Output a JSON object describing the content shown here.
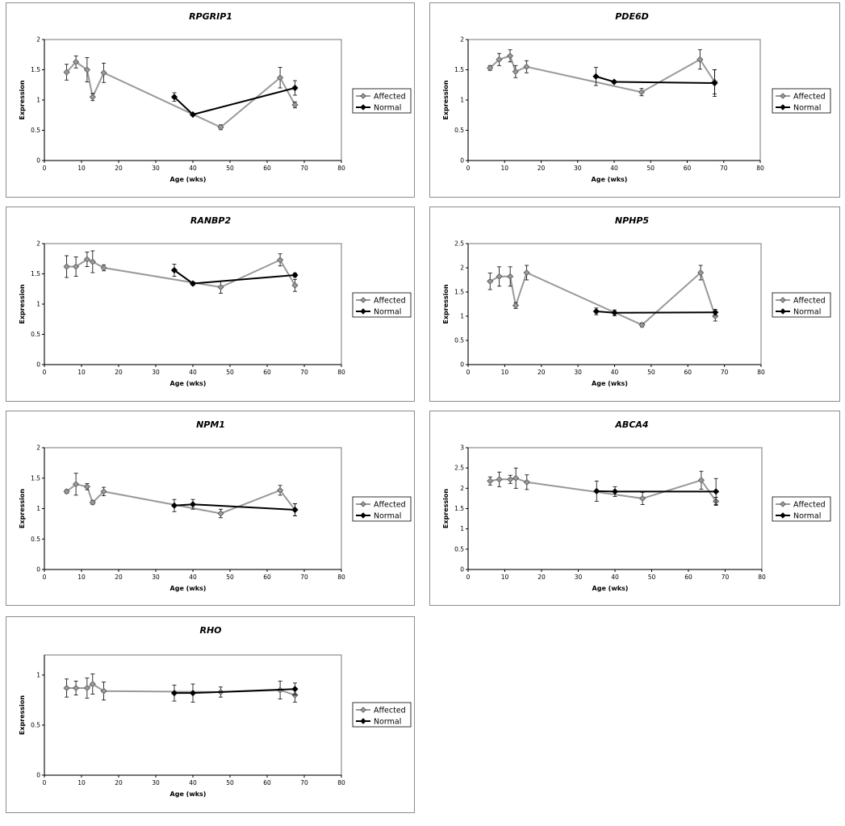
{
  "chart_data": [
    {
      "type": "line",
      "title": "RPGRIP1",
      "xlabel": "Age (wks)",
      "ylabel": "Expression",
      "xlim": [
        0,
        80
      ],
      "ylim": [
        0,
        2
      ],
      "xticks": [
        "0",
        "10",
        "20",
        "30",
        "40",
        "50",
        "60",
        "70",
        "80"
      ],
      "yticks": [
        "0",
        "0.5",
        "1",
        "1.5",
        "2"
      ],
      "legend_position": "right",
      "series": [
        {
          "name": "Affected",
          "x": [
            6,
            8.5,
            11.5,
            13,
            16,
            47.5,
            63.5,
            67.5
          ],
          "y": [
            1.46,
            1.63,
            1.5,
            1.05,
            1.45,
            0.55,
            1.37,
            0.92
          ],
          "err": [
            0.13,
            0.1,
            0.2,
            0.06,
            0.16,
            0.04,
            0.17,
            0.05
          ]
        },
        {
          "name": "Normal",
          "x": [
            35,
            40,
            67.5
          ],
          "y": [
            1.05,
            0.76,
            1.2
          ],
          "err": [
            0.07,
            0.02,
            0.12
          ]
        }
      ]
    },
    {
      "type": "line",
      "title": "PDE6D",
      "xlabel": "Age (wks)",
      "ylabel": "Expression",
      "xlim": [
        0,
        80
      ],
      "ylim": [
        0,
        2
      ],
      "xticks": [
        "0",
        "10",
        "20",
        "30",
        "40",
        "50",
        "60",
        "70",
        "80"
      ],
      "yticks": [
        "0",
        "0.5",
        "1",
        "1.5",
        "2"
      ],
      "legend_position": "right",
      "series": [
        {
          "name": "Affected",
          "x": [
            6,
            8.5,
            11.5,
            13,
            16,
            47.5,
            63.5,
            67.5
          ],
          "y": [
            1.53,
            1.67,
            1.73,
            1.47,
            1.55,
            1.13,
            1.67,
            1.3
          ],
          "err": [
            0.04,
            0.1,
            0.1,
            0.1,
            0.1,
            0.06,
            0.16,
            0.2
          ]
        },
        {
          "name": "Normal",
          "x": [
            35,
            40,
            67.5
          ],
          "y": [
            1.39,
            1.3,
            1.28
          ],
          "err": [
            0.15,
            0.02,
            0.22
          ]
        }
      ]
    },
    {
      "type": "line",
      "title": "RANBP2",
      "xlabel": "Age (wks)",
      "ylabel": "Expression",
      "xlim": [
        0,
        80
      ],
      "ylim": [
        0,
        2
      ],
      "xticks": [
        "0",
        "10",
        "20",
        "30",
        "40",
        "50",
        "60",
        "70",
        "80"
      ],
      "yticks": [
        "0",
        "0.5",
        "1",
        "1.5",
        "2"
      ],
      "legend_position": "right",
      "series": [
        {
          "name": "Affected",
          "x": [
            6,
            8.5,
            11.5,
            13,
            16,
            47.5,
            63.5,
            67.5
          ],
          "y": [
            1.62,
            1.62,
            1.74,
            1.7,
            1.6,
            1.28,
            1.73,
            1.31
          ],
          "err": [
            0.18,
            0.16,
            0.12,
            0.18,
            0.05,
            0.1,
            0.1,
            0.1
          ]
        },
        {
          "name": "Normal",
          "x": [
            35,
            40,
            67.5
          ],
          "y": [
            1.56,
            1.34,
            1.48
          ],
          "err": [
            0.1,
            0.03,
            0.03
          ]
        }
      ]
    },
    {
      "type": "line",
      "title": "NPHP5",
      "xlabel": "Age (wks)",
      "ylabel": "Expression",
      "xlim": [
        0,
        80
      ],
      "ylim": [
        0,
        2.5
      ],
      "xticks": [
        "0",
        "10",
        "20",
        "30",
        "40",
        "50",
        "60",
        "70",
        "80"
      ],
      "yticks": [
        "0",
        "0.5",
        "1",
        "1.5",
        "2",
        "2.5"
      ],
      "legend_position": "right",
      "series": [
        {
          "name": "Affected",
          "x": [
            6,
            8.5,
            11.5,
            13,
            16,
            47.5,
            63.5,
            67.5
          ],
          "y": [
            1.72,
            1.82,
            1.82,
            1.22,
            1.9,
            0.82,
            1.9,
            1.0
          ],
          "err": [
            0.17,
            0.2,
            0.2,
            0.06,
            0.15,
            0.04,
            0.15,
            0.1
          ]
        },
        {
          "name": "Normal",
          "x": [
            35,
            40,
            67.5
          ],
          "y": [
            1.1,
            1.07,
            1.08
          ],
          "err": [
            0.07,
            0.06,
            0.06
          ]
        }
      ]
    },
    {
      "type": "line",
      "title": "NPM1",
      "xlabel": "Age (wks)",
      "ylabel": "Expression",
      "xlim": [
        0,
        80
      ],
      "ylim": [
        0,
        2
      ],
      "xticks": [
        "0",
        "10",
        "20",
        "30",
        "40",
        "50",
        "60",
        "70",
        "80"
      ],
      "yticks": [
        "0",
        "0.5",
        "1",
        "1.5",
        "2"
      ],
      "legend_position": "right",
      "series": [
        {
          "name": "Affected",
          "x": [
            6,
            8.5,
            11.5,
            13,
            16,
            47.5,
            63.5,
            67.5
          ],
          "y": [
            1.28,
            1.4,
            1.36,
            1.1,
            1.28,
            0.92,
            1.3,
            0.98
          ],
          "err": [
            0.03,
            0.18,
            0.05,
            0.03,
            0.07,
            0.07,
            0.08,
            0.1
          ]
        },
        {
          "name": "Normal",
          "x": [
            35,
            40,
            67.5
          ],
          "y": [
            1.05,
            1.07,
            0.98
          ],
          "err": [
            0.1,
            0.08,
            0.1
          ]
        }
      ]
    },
    {
      "type": "line",
      "title": "ABCA4",
      "xlabel": "Age (wks)",
      "ylabel": "Expression",
      "xlim": [
        0,
        80
      ],
      "ylim": [
        0,
        3
      ],
      "xticks": [
        "0",
        "10",
        "20",
        "30",
        "40",
        "50",
        "60",
        "70",
        "80"
      ],
      "yticks": [
        "0",
        "0.5",
        "1",
        "1.5",
        "2",
        "2.5",
        "3"
      ],
      "legend_position": "right",
      "series": [
        {
          "name": "Affected",
          "x": [
            6,
            8.5,
            11.5,
            13,
            16,
            47.5,
            63.5,
            67.5
          ],
          "y": [
            2.18,
            2.22,
            2.22,
            2.25,
            2.15,
            1.75,
            2.2,
            1.68
          ],
          "err": [
            0.1,
            0.18,
            0.1,
            0.25,
            0.18,
            0.15,
            0.22,
            0.1
          ]
        },
        {
          "name": "Normal",
          "x": [
            35,
            40,
            67.5
          ],
          "y": [
            1.93,
            1.92,
            1.92
          ],
          "err": [
            0.25,
            0.12,
            0.32
          ]
        }
      ]
    },
    {
      "type": "line",
      "title": "RHO",
      "xlabel": "Age (wks)",
      "ylabel": "Expression",
      "xlim": [
        0,
        80
      ],
      "ylim": [
        0,
        1.2
      ],
      "xticks": [
        "0",
        "10",
        "20",
        "30",
        "40",
        "50",
        "60",
        "70",
        "80"
      ],
      "yticks": [
        "0",
        "0.5",
        "1"
      ],
      "legend_position": "right",
      "series": [
        {
          "name": "Affected",
          "x": [
            6,
            8.5,
            11.5,
            13,
            16,
            47.5,
            63.5,
            67.5
          ],
          "y": [
            0.87,
            0.87,
            0.87,
            0.91,
            0.84,
            0.83,
            0.85,
            0.8
          ],
          "err": [
            0.09,
            0.07,
            0.1,
            0.1,
            0.09,
            0.05,
            0.09,
            0.07
          ]
        },
        {
          "name": "Normal",
          "x": [
            35,
            40,
            67.5
          ],
          "y": [
            0.82,
            0.82,
            0.86
          ],
          "err": [
            0.08,
            0.09,
            0.06
          ]
        }
      ]
    }
  ]
}
